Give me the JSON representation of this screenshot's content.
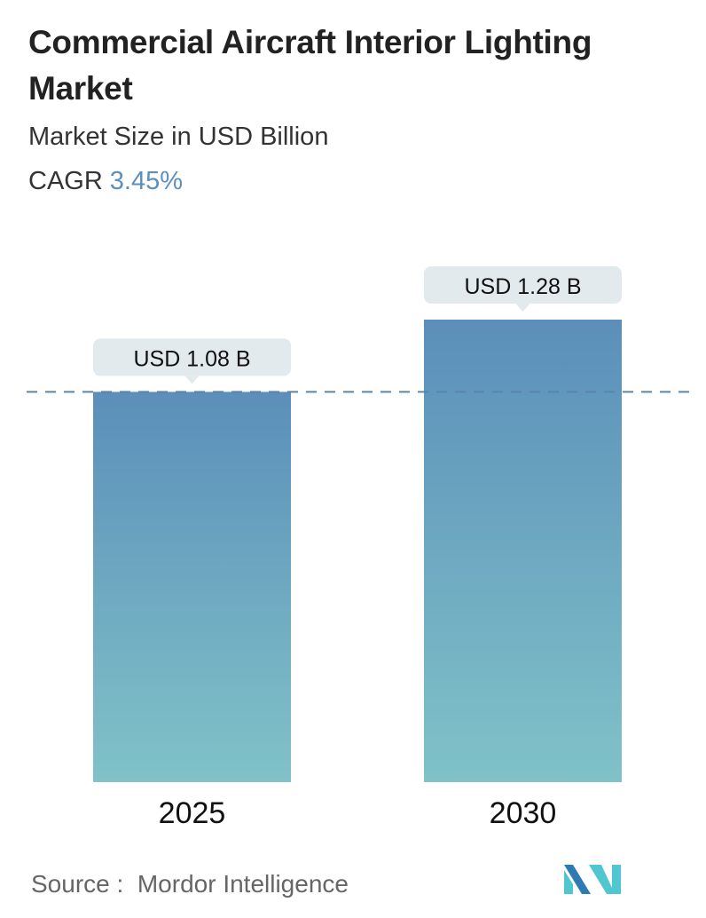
{
  "header": {
    "title": "Commercial Aircraft Interior Lighting Market",
    "subtitle": "Market Size in USD Billion",
    "cagr_label": "CAGR",
    "cagr_value": "3.45%"
  },
  "chart_data": {
    "type": "bar",
    "categories": [
      "2025",
      "2030"
    ],
    "values": [
      1.08,
      1.28
    ],
    "data_labels": [
      "USD 1.08 B",
      "USD 1.28 B"
    ],
    "ylim": [
      0,
      1.28
    ],
    "grid": false,
    "reference_line": 1.08,
    "colors": {
      "bar_top": "#5b8fba",
      "bar_bottom": "#80c2c8",
      "label_bg": "#e2eaee",
      "reference": "#5b84a8"
    }
  },
  "footer": {
    "source_label": "Source :",
    "source_name": "Mordor Intelligence"
  },
  "logo": {
    "text": "MI",
    "colors": [
      "#2e7bb4",
      "#4fc6d0"
    ]
  }
}
